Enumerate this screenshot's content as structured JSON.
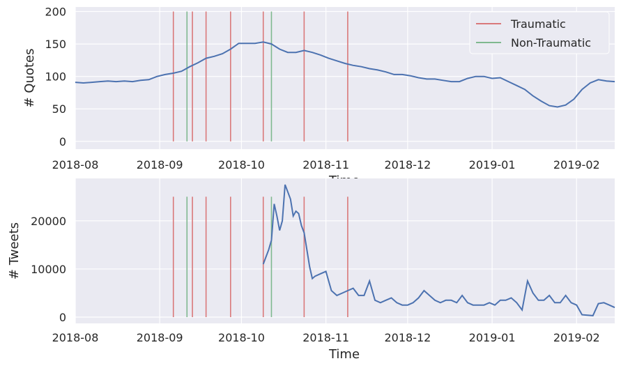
{
  "colors": {
    "background": "#eaeaf2",
    "grid": "#ffffff",
    "line": "#4c72b0",
    "traumatic": "#d9787a",
    "nontraumatic": "#7fb88f"
  },
  "chart_data": [
    {
      "type": "line",
      "ylabel": "# Quotes",
      "xlabel": "Time",
      "ylim": [
        -12,
        207
      ],
      "xlim": [
        "2018-08-01",
        "2019-02-15"
      ],
      "grid": true,
      "legend": {
        "placement": "top-right",
        "entries": [
          "Traumatic",
          "Non-Traumatic"
        ]
      },
      "xticks": [
        "2018-08",
        "2018-09",
        "2018-10",
        "2018-11",
        "2018-12",
        "2019-01",
        "2019-02"
      ],
      "yticks": [
        0,
        50,
        100,
        150,
        200
      ],
      "vline_height": 200,
      "traumatic_events": [
        "2018-09-06",
        "2018-09-13",
        "2018-09-18",
        "2018-09-27",
        "2018-10-09",
        "2018-10-24",
        "2018-11-09"
      ],
      "nontraumatic_events": [
        "2018-09-11",
        "2018-10-12"
      ],
      "series": [
        {
          "x": [
            "2018-08-01",
            "2018-08-04",
            "2018-08-07",
            "2018-08-10",
            "2018-08-13",
            "2018-08-16",
            "2018-08-19",
            "2018-08-22",
            "2018-08-25",
            "2018-08-28",
            "2018-08-31",
            "2018-09-03",
            "2018-09-06",
            "2018-09-09",
            "2018-09-12",
            "2018-09-15",
            "2018-09-18",
            "2018-09-21",
            "2018-09-24",
            "2018-09-27",
            "2018-09-30",
            "2018-10-03",
            "2018-10-06",
            "2018-10-09",
            "2018-10-12",
            "2018-10-15",
            "2018-10-18",
            "2018-10-21",
            "2018-10-24",
            "2018-10-27",
            "2018-10-30",
            "2018-11-02",
            "2018-11-05",
            "2018-11-08",
            "2018-11-11",
            "2018-11-14",
            "2018-11-17",
            "2018-11-20",
            "2018-11-23",
            "2018-11-26",
            "2018-11-29",
            "2018-12-02",
            "2018-12-05",
            "2018-12-08",
            "2018-12-11",
            "2018-12-14",
            "2018-12-17",
            "2018-12-20",
            "2018-12-23",
            "2018-12-26",
            "2018-12-29",
            "2019-01-01",
            "2019-01-04",
            "2019-01-07",
            "2019-01-10",
            "2019-01-13",
            "2019-01-16",
            "2019-01-19",
            "2019-01-22",
            "2019-01-25",
            "2019-01-28",
            "2019-01-31",
            "2019-02-03",
            "2019-02-06",
            "2019-02-09",
            "2019-02-12",
            "2019-02-15"
          ],
          "values": [
            91,
            90,
            91,
            92,
            93,
            92,
            93,
            92,
            94,
            95,
            100,
            103,
            105,
            108,
            115,
            121,
            128,
            131,
            135,
            142,
            151,
            151,
            151,
            153,
            150,
            142,
            137,
            137,
            140,
            137,
            133,
            128,
            124,
            120,
            117,
            115,
            112,
            110,
            107,
            103,
            103,
            101,
            98,
            96,
            96,
            94,
            92,
            92,
            97,
            100,
            100,
            97,
            98,
            92,
            86,
            80,
            70,
            62,
            55,
            53,
            56,
            65,
            80,
            90,
            95,
            93,
            92
          ]
        }
      ]
    },
    {
      "type": "line",
      "ylabel": "# Tweets",
      "xlabel": "Time",
      "ylim": [
        -1300,
        28800
      ],
      "xlim": [
        "2018-08-01",
        "2019-02-15"
      ],
      "grid": true,
      "xticks": [
        "2018-08",
        "2018-09",
        "2018-10",
        "2018-11",
        "2018-12",
        "2019-01",
        "2019-02"
      ],
      "yticks": [
        0,
        10000,
        20000
      ],
      "vline_height": 25000,
      "traumatic_events": [
        "2018-09-06",
        "2018-09-13",
        "2018-09-18",
        "2018-09-27",
        "2018-10-09",
        "2018-10-24",
        "2018-11-09"
      ],
      "nontraumatic_events": [
        "2018-09-11",
        "2018-10-12"
      ],
      "series": [
        {
          "x": [
            "2018-10-09",
            "2018-10-10",
            "2018-10-11",
            "2018-10-12",
            "2018-10-13",
            "2018-10-14",
            "2018-10-15",
            "2018-10-16",
            "2018-10-17",
            "2018-10-18",
            "2018-10-19",
            "2018-10-20",
            "2018-10-21",
            "2018-10-22",
            "2018-10-23",
            "2018-10-24",
            "2018-10-25",
            "2018-10-26",
            "2018-10-27",
            "2018-10-28",
            "2018-10-30",
            "2018-11-01",
            "2018-11-03",
            "2018-11-05",
            "2018-11-07",
            "2018-11-09",
            "2018-11-11",
            "2018-11-13",
            "2018-11-15",
            "2018-11-17",
            "2018-11-19",
            "2018-11-21",
            "2018-11-23",
            "2018-11-25",
            "2018-11-27",
            "2018-11-29",
            "2018-12-01",
            "2018-12-03",
            "2018-12-05",
            "2018-12-07",
            "2018-12-09",
            "2018-12-11",
            "2018-12-13",
            "2018-12-15",
            "2018-12-17",
            "2018-12-19",
            "2018-12-21",
            "2018-12-23",
            "2018-12-25",
            "2018-12-27",
            "2018-12-29",
            "2018-12-31",
            "2019-01-02",
            "2019-01-04",
            "2019-01-06",
            "2019-01-08",
            "2019-01-10",
            "2019-01-12",
            "2019-01-14",
            "2019-01-16",
            "2019-01-18",
            "2019-01-20",
            "2019-01-22",
            "2019-01-24",
            "2019-01-26",
            "2019-01-28",
            "2019-01-30",
            "2019-02-01",
            "2019-02-03",
            "2019-02-05",
            "2019-02-07",
            "2019-02-09",
            "2019-02-11",
            "2019-02-13",
            "2019-02-15"
          ],
          "values": [
            11000,
            12500,
            14000,
            16000,
            23500,
            21000,
            18000,
            20000,
            27500,
            26000,
            24500,
            21000,
            22000,
            21500,
            19000,
            17500,
            14000,
            10500,
            8000,
            8500,
            9000,
            9500,
            5500,
            4500,
            5000,
            5500,
            6000,
            4500,
            4500,
            7500,
            3500,
            3000,
            3500,
            4000,
            3000,
            2500,
            2500,
            3000,
            4000,
            5500,
            4500,
            3500,
            3000,
            3500,
            3500,
            3000,
            4500,
            3000,
            2500,
            2500,
            2500,
            3000,
            2500,
            3500,
            3500,
            4000,
            3000,
            1500,
            7500,
            5000,
            3500,
            3500,
            4500,
            3000,
            3000,
            4500,
            3000,
            2500,
            500,
            400,
            300,
            2800,
            3000,
            2500,
            2000
          ]
        }
      ]
    }
  ]
}
